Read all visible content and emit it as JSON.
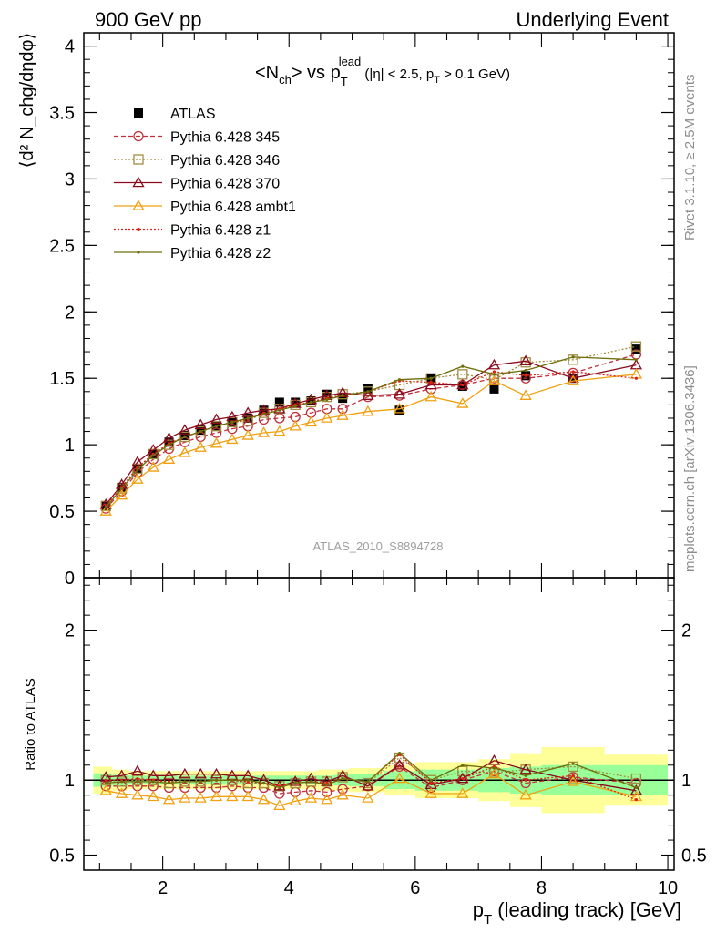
{
  "header": {
    "left": "900 GeV pp",
    "right": "Underlying Event"
  },
  "side_texts": {
    "rivet": "Rivet 3.1.10, ≥ 2.5M events",
    "mcplots": "mcplots.cern.ch [arXiv:1306.3436]"
  },
  "watermark": "ATLAS_2010_S8894728",
  "chart_data": [
    {
      "type": "scatter",
      "panel": "main",
      "title_parts": {
        "a": "<N",
        "a_sub": "ch",
        "b": "> vs p",
        "b_sub": "T",
        "b_sup": "lead",
        "c": " (|η| < 2.5, p",
        "c_sub": "T",
        "d": " > 0.1 GeV)"
      },
      "ylabel": "⟨d² N_chg/dηdφ⟩",
      "ylim": [
        0,
        4.1
      ],
      "yticks": [
        0,
        0.5,
        1,
        1.5,
        2,
        2.5,
        3,
        3.5,
        4
      ],
      "ytick_labels": [
        "0",
        "0.5",
        "1",
        "1.5",
        "2",
        "2.5",
        "3",
        "3.5",
        "4"
      ],
      "xlim": [
        0.75,
        10.1
      ],
      "legend_position": "top-left",
      "x": [
        1.1,
        1.35,
        1.6,
        1.85,
        2.1,
        2.35,
        2.6,
        2.85,
        3.1,
        3.35,
        3.6,
        3.85,
        4.1,
        4.35,
        4.6,
        4.85,
        5.25,
        5.75,
        6.25,
        6.75,
        7.25,
        7.75,
        8.5,
        9.5
      ],
      "series": [
        {
          "name": "ATLAS",
          "style": "data",
          "color": "#000000",
          "values": [
            0.54,
            0.68,
            0.82,
            0.93,
            1.02,
            1.07,
            1.11,
            1.14,
            1.17,
            1.2,
            1.26,
            1.32,
            1.32,
            1.33,
            1.38,
            1.35,
            1.42,
            1.26,
            1.5,
            1.44,
            1.42,
            1.52,
            1.5,
            1.72
          ]
        },
        {
          "name": "Pythia 6.428 345",
          "style": "circle-dashed",
          "color": "#c0303a",
          "values": [
            0.52,
            0.65,
            0.79,
            0.89,
            0.97,
            1.02,
            1.06,
            1.09,
            1.12,
            1.14,
            1.19,
            1.2,
            1.21,
            1.24,
            1.27,
            1.27,
            1.36,
            1.37,
            1.42,
            1.45,
            1.5,
            1.5,
            1.54,
            1.68
          ]
        },
        {
          "name": "Pythia 6.428 346",
          "style": "square-dotted",
          "color": "#a08c40",
          "values": [
            0.54,
            0.67,
            0.82,
            0.93,
            1.0,
            1.06,
            1.1,
            1.14,
            1.17,
            1.18,
            1.24,
            1.27,
            1.3,
            1.32,
            1.36,
            1.38,
            1.4,
            1.45,
            1.5,
            1.53,
            1.49,
            1.62,
            1.64,
            1.74
          ]
        },
        {
          "name": "Pythia 6.428 370",
          "style": "triangle-solid",
          "color": "#8b0a1e",
          "values": [
            0.55,
            0.7,
            0.87,
            0.96,
            1.05,
            1.11,
            1.15,
            1.19,
            1.21,
            1.24,
            1.26,
            1.27,
            1.31,
            1.34,
            1.37,
            1.39,
            1.37,
            1.38,
            1.45,
            1.45,
            1.6,
            1.63,
            1.5,
            1.6
          ]
        },
        {
          "name": "Pythia 6.428 ambt1",
          "style": "triangle-solid",
          "color": "#f0a010",
          "values": [
            0.5,
            0.62,
            0.74,
            0.83,
            0.89,
            0.94,
            0.98,
            1.01,
            1.04,
            1.07,
            1.09,
            1.1,
            1.14,
            1.17,
            1.2,
            1.22,
            1.25,
            1.27,
            1.36,
            1.31,
            1.48,
            1.37,
            1.48,
            1.53
          ]
        },
        {
          "name": "Pythia 6.428 z1",
          "style": "dot-dotted",
          "color": "#e02010",
          "values": [
            0.54,
            0.68,
            0.83,
            0.93,
            1.01,
            1.06,
            1.1,
            1.14,
            1.17,
            1.19,
            1.24,
            1.27,
            1.3,
            1.32,
            1.35,
            1.37,
            1.4,
            1.48,
            1.47,
            1.45,
            1.55,
            1.52,
            1.55,
            1.5
          ]
        },
        {
          "name": "Pythia 6.428 z2",
          "style": "dot-solid",
          "color": "#6e6e0a",
          "values": [
            0.53,
            0.67,
            0.81,
            0.92,
            1.0,
            1.06,
            1.1,
            1.14,
            1.17,
            1.2,
            1.23,
            1.26,
            1.29,
            1.32,
            1.34,
            1.37,
            1.4,
            1.49,
            1.5,
            1.59,
            1.53,
            1.56,
            1.66,
            1.64
          ]
        }
      ]
    },
    {
      "type": "scatter",
      "panel": "ratio",
      "ylabel": "Ratio to ATLAS",
      "ylim": [
        0.4,
        2.35
      ],
      "yticks": [
        0.5,
        1,
        2
      ],
      "ytick_labels": [
        "0.5",
        "1",
        "2"
      ],
      "xlim": [
        0.75,
        10.1
      ],
      "xticks": [
        2,
        4,
        6,
        8,
        10
      ],
      "xtick_labels": [
        "2",
        "4",
        "6",
        "8",
        "10"
      ],
      "xlabel_parts": {
        "p": "p",
        "sub": "T",
        "rest": " (leading track) [GeV]"
      },
      "bins": [
        [
          0.9,
          1.2
        ],
        [
          1.2,
          1.45
        ],
        [
          1.45,
          1.7
        ],
        [
          1.7,
          1.95
        ],
        [
          1.95,
          2.2
        ],
        [
          2.2,
          2.45
        ],
        [
          2.45,
          2.7
        ],
        [
          2.7,
          2.95
        ],
        [
          2.95,
          3.2
        ],
        [
          3.2,
          3.45
        ],
        [
          3.45,
          3.7
        ],
        [
          3.7,
          3.95
        ],
        [
          3.95,
          4.2
        ],
        [
          4.2,
          4.45
        ],
        [
          4.45,
          4.7
        ],
        [
          4.7,
          4.95
        ],
        [
          4.95,
          5.5
        ],
        [
          5.5,
          6.0
        ],
        [
          6.0,
          6.5
        ],
        [
          6.5,
          7.0
        ],
        [
          7.0,
          7.5
        ],
        [
          7.5,
          8.0
        ],
        [
          8.0,
          9.0
        ],
        [
          9.0,
          10.0
        ]
      ],
      "band_stat": [
        0.045,
        0.035,
        0.03,
        0.03,
        0.03,
        0.03,
        0.03,
        0.03,
        0.03,
        0.03,
        0.03,
        0.03,
        0.03,
        0.03,
        0.03,
        0.035,
        0.04,
        0.06,
        0.07,
        0.07,
        0.08,
        0.09,
        0.1,
        0.1
      ],
      "band_total": [
        0.09,
        0.07,
        0.06,
        0.06,
        0.06,
        0.06,
        0.06,
        0.06,
        0.06,
        0.06,
        0.06,
        0.06,
        0.06,
        0.06,
        0.07,
        0.07,
        0.08,
        0.1,
        0.12,
        0.12,
        0.14,
        0.18,
        0.22,
        0.17
      ],
      "x": [
        1.1,
        1.35,
        1.6,
        1.85,
        2.1,
        2.35,
        2.6,
        2.85,
        3.1,
        3.35,
        3.6,
        3.85,
        4.1,
        4.35,
        4.6,
        4.85,
        5.25,
        5.75,
        6.25,
        6.75,
        7.25,
        7.75,
        8.5,
        9.5
      ],
      "series": [
        {
          "name": "Pythia 6.428 345",
          "style": "circle-dashed",
          "color": "#c0303a",
          "values": [
            0.96,
            0.96,
            0.96,
            0.96,
            0.95,
            0.95,
            0.95,
            0.95,
            0.96,
            0.95,
            0.95,
            0.91,
            0.92,
            0.93,
            0.92,
            0.94,
            0.96,
            1.09,
            0.95,
            1.0,
            1.06,
            0.98,
            1.02,
            0.98
          ]
        },
        {
          "name": "Pythia 6.428 346",
          "style": "square-dotted",
          "color": "#a08c40",
          "values": [
            1.0,
            0.99,
            1.0,
            1.0,
            0.98,
            0.99,
            0.99,
            1.0,
            1.0,
            0.98,
            0.98,
            0.96,
            0.98,
            0.99,
            0.99,
            1.02,
            0.98,
            1.15,
            1.0,
            1.06,
            1.05,
            1.07,
            1.09,
            1.01
          ]
        },
        {
          "name": "Pythia 6.428 370",
          "style": "triangle-solid",
          "color": "#8b0a1e",
          "values": [
            1.02,
            1.03,
            1.06,
            1.03,
            1.03,
            1.04,
            1.04,
            1.04,
            1.03,
            1.03,
            1.0,
            0.96,
            0.99,
            1.01,
            0.99,
            1.03,
            0.96,
            1.1,
            0.97,
            1.01,
            1.13,
            1.07,
            1.0,
            0.93
          ]
        },
        {
          "name": "Pythia 6.428 ambt1",
          "style": "triangle-solid",
          "color": "#f0a010",
          "values": [
            0.93,
            0.91,
            0.9,
            0.89,
            0.87,
            0.88,
            0.88,
            0.89,
            0.89,
            0.89,
            0.87,
            0.83,
            0.86,
            0.88,
            0.87,
            0.9,
            0.88,
            1.01,
            0.91,
            0.91,
            1.04,
            0.9,
            0.99,
            0.89
          ]
        },
        {
          "name": "Pythia 6.428 z1",
          "style": "dot-dotted",
          "color": "#e02010",
          "values": [
            1.0,
            1.0,
            1.01,
            1.0,
            0.99,
            0.99,
            0.99,
            1.0,
            1.0,
            0.99,
            0.98,
            0.96,
            0.98,
            0.99,
            0.98,
            1.01,
            0.99,
            1.17,
            0.98,
            1.01,
            1.09,
            1.0,
            1.03,
            0.87
          ]
        },
        {
          "name": "Pythia 6.428 z2",
          "style": "dot-solid",
          "color": "#6e6e0a",
          "values": [
            0.98,
            0.99,
            0.99,
            0.99,
            0.98,
            0.99,
            0.99,
            1.0,
            1.0,
            1.0,
            0.98,
            0.95,
            0.98,
            0.99,
            0.97,
            1.01,
            0.99,
            1.18,
            1.0,
            1.1,
            1.08,
            1.03,
            1.11,
            0.95
          ]
        }
      ]
    }
  ]
}
